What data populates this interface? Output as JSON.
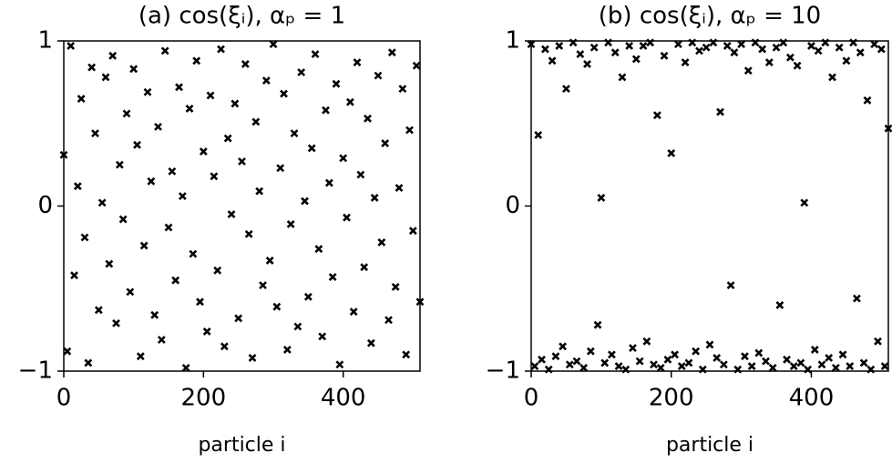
{
  "chart_data": [
    {
      "type": "scatter",
      "title": "(a) cos(ξᵢ), αₚ = 1",
      "xlabel": "particle i",
      "color": "#000000",
      "marker": "x",
      "x": [
        0,
        5,
        10,
        15,
        20,
        25,
        30,
        35,
        40,
        45,
        50,
        55,
        60,
        65,
        70,
        75,
        80,
        85,
        90,
        95,
        100,
        105,
        110,
        115,
        120,
        125,
        130,
        135,
        140,
        145,
        150,
        155,
        160,
        165,
        170,
        175,
        180,
        185,
        190,
        195,
        200,
        205,
        210,
        215,
        220,
        225,
        230,
        235,
        240,
        245,
        250,
        255,
        260,
        265,
        270,
        275,
        280,
        285,
        290,
        295,
        300,
        305,
        310,
        315,
        320,
        325,
        330,
        335,
        340,
        345,
        350,
        355,
        360,
        365,
        370,
        375,
        380,
        385,
        390,
        395,
        400,
        405,
        410,
        415,
        420,
        425,
        430,
        435,
        440,
        445,
        450,
        455,
        460,
        465,
        470,
        475,
        480,
        485,
        490,
        495,
        500,
        505,
        510
      ],
      "values": [
        0.31,
        -0.88,
        0.97,
        -0.42,
        0.12,
        0.65,
        -0.19,
        -0.95,
        0.84,
        0.44,
        -0.63,
        0.02,
        0.78,
        -0.35,
        0.91,
        -0.71,
        0.25,
        -0.08,
        0.56,
        -0.52,
        0.83,
        0.37,
        -0.91,
        -0.24,
        0.69,
        0.15,
        -0.66,
        0.48,
        -0.81,
        0.94,
        -0.13,
        0.21,
        -0.45,
        0.72,
        0.06,
        -0.98,
        0.59,
        -0.29,
        0.88,
        -0.58,
        0.33,
        -0.76,
        0.67,
        0.18,
        -0.39,
        0.95,
        -0.85,
        0.41,
        -0.05,
        0.62,
        -0.68,
        0.27,
        0.86,
        -0.17,
        -0.92,
        0.51,
        0.09,
        -0.48,
        0.76,
        -0.33,
        0.98,
        -0.61,
        0.23,
        0.68,
        -0.87,
        -0.11,
        0.44,
        -0.73,
        0.81,
        0.03,
        -0.55,
        0.35,
        0.92,
        -0.26,
        -0.79,
        0.58,
        0.14,
        -0.43,
        0.74,
        -0.96,
        0.29,
        -0.07,
        0.63,
        -0.64,
        0.87,
        0.19,
        -0.37,
        0.53,
        -0.83,
        0.05,
        0.79,
        -0.22,
        0.38,
        -0.69,
        0.93,
        -0.49,
        0.11,
        0.71,
        -0.9,
        0.46,
        -0.15,
        0.85,
        -0.58
      ],
      "xlim": [
        0,
        510
      ],
      "ylim": [
        -1,
        1
      ],
      "xticks": [
        0,
        200,
        400
      ],
      "yticks": [
        {
          "value": -1,
          "label": "−1"
        },
        0,
        1
      ]
    },
    {
      "type": "scatter",
      "title": "(b) cos(ξᵢ), αₚ = 10",
      "xlabel": "particle i",
      "color": "#000000",
      "marker": "x",
      "x": [
        0,
        5,
        10,
        15,
        20,
        25,
        30,
        35,
        40,
        45,
        50,
        55,
        60,
        65,
        70,
        75,
        80,
        85,
        90,
        95,
        100,
        105,
        110,
        115,
        120,
        125,
        130,
        135,
        140,
        145,
        150,
        155,
        160,
        165,
        170,
        175,
        180,
        185,
        190,
        195,
        200,
        205,
        210,
        215,
        220,
        225,
        230,
        235,
        240,
        245,
        250,
        255,
        260,
        265,
        270,
        275,
        280,
        285,
        290,
        295,
        300,
        305,
        310,
        315,
        320,
        325,
        330,
        335,
        340,
        345,
        350,
        355,
        360,
        365,
        370,
        375,
        380,
        385,
        390,
        395,
        400,
        405,
        410,
        415,
        420,
        425,
        430,
        435,
        440,
        445,
        450,
        455,
        460,
        465,
        470,
        475,
        480,
        485,
        490,
        495,
        500,
        505,
        510
      ],
      "values": [
        0.98,
        -0.97,
        0.43,
        -0.93,
        0.95,
        -0.99,
        0.88,
        -0.91,
        0.97,
        -0.85,
        0.71,
        -0.96,
        0.99,
        -0.94,
        0.92,
        -0.98,
        0.86,
        -0.88,
        0.96,
        -0.72,
        0.05,
        -0.95,
        0.99,
        -0.9,
        0.93,
        -0.97,
        0.78,
        -0.99,
        0.97,
        -0.86,
        0.89,
        -0.94,
        0.97,
        -0.82,
        0.99,
        -0.96,
        0.55,
        -0.98,
        0.91,
        -0.93,
        0.32,
        -0.9,
        0.98,
        -0.97,
        0.87,
        -0.95,
        0.99,
        -0.88,
        0.94,
        -0.99,
        0.96,
        -0.84,
        0.99,
        -0.92,
        0.57,
        -0.96,
        0.97,
        -0.48,
        0.93,
        -0.99,
        0.98,
        -0.91,
        0.82,
        -0.97,
        0.99,
        -0.89,
        0.95,
        -0.94,
        0.87,
        -0.98,
        0.96,
        -0.6,
        0.99,
        -0.93,
        0.9,
        -0.97,
        0.85,
        -0.95,
        0.02,
        -0.99,
        0.97,
        -0.87,
        0.94,
        -0.96,
        0.99,
        -0.92,
        0.78,
        -0.98,
        0.96,
        -0.9,
        0.88,
        -0.97,
        0.99,
        -0.56,
        0.93,
        -0.95,
        0.64,
        -0.99,
        0.98,
        -0.82,
        0.95,
        -0.97,
        0.47
      ],
      "xlim": [
        0,
        510
      ],
      "ylim": [
        -1,
        1
      ],
      "xticks": [
        0,
        200,
        400
      ],
      "yticks": [
        {
          "value": -1,
          "label": "−1"
        },
        0,
        1
      ]
    }
  ]
}
